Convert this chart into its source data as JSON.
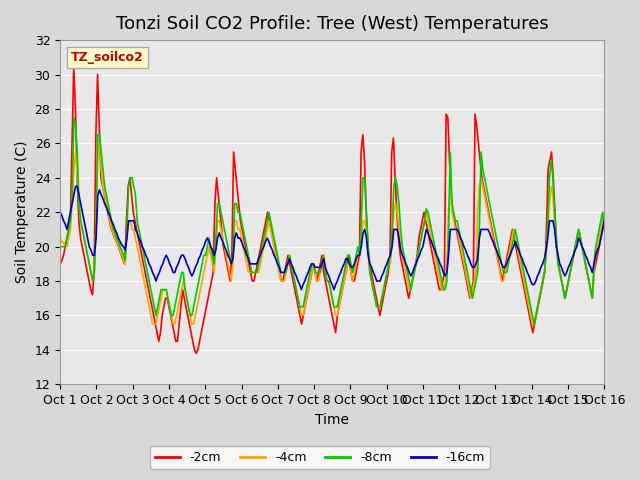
{
  "title": "Tonzi Soil CO2 Profile: Tree (West) Temperatures",
  "xlabel": "Time",
  "ylabel": "Soil Temperature (C)",
  "ylim": [
    12,
    32
  ],
  "yticks": [
    12,
    14,
    16,
    18,
    20,
    22,
    24,
    26,
    28,
    30,
    32
  ],
  "x_labels": [
    "Oct 1",
    "Oct 2",
    "Oct 3",
    "Oct 4",
    "Oct 5",
    "Oct 6",
    "Oct 7",
    "Oct 8",
    "Oct 9",
    "Oct 10",
    "Oct 11",
    "Oct 12",
    "Oct 13",
    "Oct 14",
    "Oct 15",
    "Oct 16"
  ],
  "series": {
    "-2cm": {
      "color": "#FF0000",
      "linewidth": 1.2
    },
    "-4cm": {
      "color": "#FFA500",
      "linewidth": 1.2
    },
    "-8cm": {
      "color": "#00CC00",
      "linewidth": 1.2
    },
    "-16cm": {
      "color": "#0000BB",
      "linewidth": 1.2
    }
  },
  "legend_label": "TZ_soilco2",
  "background_color": "#D8D8D8",
  "plot_bg_color": "#E8E8E8",
  "grid_color": "#FFFFFF",
  "title_fontsize": 13,
  "axis_fontsize": 10,
  "tick_fontsize": 9,
  "data_2cm": [
    19.0,
    19.2,
    19.5,
    20.0,
    20.5,
    21.0,
    21.5,
    26.0,
    30.5,
    28.0,
    24.0,
    21.5,
    20.5,
    20.0,
    19.5,
    19.0,
    18.5,
    18.0,
    17.5,
    17.2,
    18.5,
    26.5,
    30.0,
    27.0,
    24.0,
    23.5,
    23.0,
    22.5,
    22.0,
    21.5,
    21.0,
    20.8,
    20.5,
    20.3,
    20.1,
    19.8,
    19.5,
    19.2,
    19.0,
    21.5,
    23.5,
    24.0,
    23.0,
    22.0,
    21.5,
    21.0,
    20.5,
    20.0,
    19.5,
    19.0,
    18.5,
    18.0,
    17.5,
    17.0,
    16.5,
    16.0,
    15.5,
    15.0,
    14.5,
    15.0,
    16.0,
    16.5,
    17.0,
    17.0,
    16.5,
    16.0,
    15.5,
    15.0,
    14.5,
    14.5,
    15.5,
    16.5,
    17.5,
    17.0,
    16.5,
    16.0,
    15.5,
    15.0,
    14.5,
    14.0,
    13.8,
    14.0,
    14.5,
    15.0,
    15.5,
    16.0,
    16.5,
    17.0,
    17.5,
    18.0,
    18.5,
    22.5,
    24.0,
    23.0,
    22.0,
    21.0,
    20.0,
    19.5,
    19.0,
    18.5,
    18.0,
    19.5,
    25.5,
    24.5,
    23.5,
    22.5,
    21.5,
    21.0,
    20.5,
    20.0,
    19.5,
    19.0,
    18.5,
    18.0,
    18.0,
    18.5,
    19.0,
    19.5,
    20.0,
    20.5,
    21.0,
    21.5,
    22.0,
    21.5,
    21.0,
    20.5,
    20.0,
    19.5,
    19.0,
    18.5,
    18.0,
    18.0,
    18.5,
    19.0,
    19.5,
    19.0,
    18.5,
    18.0,
    17.5,
    17.0,
    16.5,
    16.0,
    15.5,
    16.0,
    16.5,
    17.0,
    17.5,
    18.0,
    18.5,
    19.0,
    18.5,
    18.0,
    18.5,
    19.0,
    19.5,
    18.5,
    18.0,
    17.5,
    17.0,
    16.5,
    16.0,
    15.5,
    15.0,
    16.0,
    16.5,
    17.0,
    17.5,
    18.0,
    18.5,
    19.0,
    19.5,
    18.5,
    18.0,
    18.0,
    18.5,
    19.0,
    19.5,
    25.5,
    26.5,
    25.0,
    22.0,
    20.0,
    19.0,
    18.5,
    18.0,
    17.5,
    17.0,
    16.5,
    16.0,
    16.5,
    17.0,
    17.5,
    18.0,
    18.5,
    19.5,
    25.5,
    26.3,
    24.0,
    22.0,
    20.5,
    19.5,
    19.0,
    18.5,
    18.0,
    17.5,
    17.0,
    17.5,
    18.0,
    18.5,
    19.0,
    19.5,
    20.5,
    21.0,
    21.5,
    22.0,
    21.5,
    21.0,
    20.5,
    20.0,
    19.5,
    19.0,
    18.5,
    18.0,
    17.5,
    17.5,
    18.0,
    18.5,
    27.7,
    27.5,
    25.0,
    23.0,
    22.0,
    21.5,
    21.0,
    20.5,
    20.0,
    19.5,
    19.0,
    18.5,
    18.0,
    17.5,
    17.0,
    17.5,
    18.0,
    27.7,
    27.0,
    26.0,
    25.0,
    24.0,
    23.5,
    23.0,
    22.5,
    22.0,
    21.5,
    21.0,
    20.5,
    20.0,
    19.5,
    19.0,
    18.5,
    18.0,
    18.5,
    19.0,
    19.5,
    20.0,
    20.5,
    21.0,
    20.5,
    20.0,
    19.5,
    19.0,
    18.5,
    18.0,
    17.5,
    17.0,
    16.5,
    16.0,
    15.5,
    15.0,
    15.5,
    16.0,
    16.5,
    17.0,
    17.5,
    18.0,
    18.5,
    21.0,
    24.5,
    25.0,
    25.5,
    24.0,
    22.0,
    20.0,
    19.0,
    18.5,
    18.0,
    17.5,
    17.0,
    17.5,
    18.0,
    18.5,
    19.0,
    19.5,
    20.0,
    20.5,
    21.0,
    20.5,
    20.0,
    19.5,
    19.0,
    18.5,
    18.0,
    17.5,
    17.0,
    18.5,
    19.0,
    19.5,
    20.0,
    20.5,
    21.0,
    21.5
  ],
  "data_4cm": [
    20.5,
    20.3,
    20.2,
    20.1,
    20.0,
    20.5,
    21.0,
    22.5,
    24.5,
    25.5,
    24.0,
    22.5,
    21.5,
    21.0,
    20.5,
    20.0,
    19.5,
    19.0,
    18.5,
    18.0,
    18.5,
    21.5,
    25.5,
    26.0,
    24.5,
    23.5,
    23.0,
    22.5,
    22.0,
    21.5,
    21.0,
    20.8,
    20.5,
    20.3,
    20.1,
    19.8,
    19.5,
    19.2,
    19.0,
    20.5,
    21.5,
    21.5,
    21.0,
    21.0,
    20.5,
    20.0,
    19.5,
    19.0,
    18.5,
    18.0,
    17.5,
    17.0,
    16.5,
    16.0,
    15.5,
    15.5,
    15.5,
    16.0,
    16.5,
    17.0,
    17.5,
    17.5,
    17.5,
    17.0,
    16.5,
    16.0,
    15.5,
    15.5,
    16.0,
    16.5,
    17.0,
    17.5,
    18.0,
    17.5,
    17.0,
    16.5,
    16.0,
    15.5,
    15.5,
    16.0,
    16.5,
    17.0,
    17.5,
    18.0,
    18.5,
    19.0,
    19.5,
    20.0,
    19.5,
    19.0,
    18.5,
    20.0,
    21.5,
    21.5,
    21.0,
    20.5,
    20.0,
    19.5,
    19.0,
    18.5,
    18.0,
    19.0,
    21.5,
    21.5,
    21.0,
    21.0,
    20.5,
    20.0,
    19.5,
    19.0,
    18.5,
    18.5,
    18.5,
    18.5,
    18.5,
    18.5,
    18.5,
    19.0,
    19.5,
    20.0,
    20.5,
    21.0,
    21.5,
    21.0,
    20.5,
    20.0,
    19.5,
    19.0,
    18.5,
    18.0,
    18.0,
    18.0,
    18.5,
    19.0,
    19.5,
    19.0,
    18.5,
    18.0,
    17.5,
    17.0,
    16.5,
    16.0,
    16.0,
    16.5,
    17.0,
    17.5,
    18.0,
    18.5,
    19.0,
    18.5,
    18.0,
    18.0,
    18.5,
    19.0,
    19.5,
    18.5,
    18.0,
    18.0,
    17.5,
    17.0,
    16.5,
    16.0,
    16.0,
    16.5,
    17.0,
    17.5,
    18.0,
    18.5,
    19.0,
    19.0,
    18.5,
    18.0,
    18.5,
    19.0,
    19.5,
    19.5,
    20.5,
    21.5,
    21.5,
    21.0,
    19.5,
    18.5,
    18.0,
    17.5,
    17.0,
    16.5,
    16.5,
    16.5,
    17.0,
    17.5,
    18.0,
    18.5,
    19.0,
    19.0,
    20.5,
    22.0,
    22.5,
    22.0,
    21.0,
    20.0,
    19.5,
    19.0,
    18.5,
    18.0,
    17.5,
    17.5,
    18.0,
    18.5,
    19.0,
    19.5,
    20.0,
    20.5,
    21.0,
    21.5,
    22.0,
    21.5,
    21.0,
    20.5,
    20.0,
    19.5,
    19.0,
    18.5,
    18.0,
    17.5,
    17.5,
    18.0,
    18.5,
    22.0,
    23.5,
    22.0,
    21.5,
    21.0,
    21.0,
    20.5,
    20.0,
    19.5,
    19.0,
    18.5,
    18.0,
    17.5,
    17.0,
    17.5,
    18.0,
    18.5,
    22.0,
    23.5,
    24.0,
    23.5,
    23.0,
    22.5,
    22.0,
    21.5,
    21.0,
    20.5,
    20.0,
    19.5,
    19.0,
    18.5,
    18.0,
    18.0,
    18.5,
    19.0,
    19.5,
    20.0,
    20.5,
    21.0,
    20.5,
    20.0,
    19.5,
    19.0,
    18.5,
    18.0,
    17.5,
    17.0,
    16.5,
    16.0,
    15.5,
    15.5,
    16.0,
    16.5,
    17.0,
    17.5,
    18.0,
    18.5,
    19.5,
    21.0,
    22.5,
    23.5,
    23.0,
    21.5,
    20.0,
    19.0,
    18.5,
    18.0,
    17.5,
    17.0,
    17.5,
    18.0,
    18.5,
    19.0,
    19.5,
    20.0,
    20.5,
    21.0,
    20.5,
    20.0,
    19.5,
    19.0,
    18.5,
    18.0,
    17.5,
    17.0,
    18.5,
    19.5,
    20.0,
    20.5,
    21.0,
    21.5,
    22.0
  ],
  "data_8cm": [
    20.0,
    20.0,
    20.0,
    20.0,
    20.5,
    21.0,
    21.5,
    23.0,
    27.5,
    27.0,
    25.5,
    22.5,
    21.5,
    21.0,
    20.5,
    20.0,
    19.5,
    19.0,
    18.5,
    18.0,
    18.5,
    21.5,
    26.5,
    26.5,
    25.5,
    24.5,
    23.5,
    23.0,
    22.5,
    22.0,
    21.5,
    21.0,
    20.8,
    20.5,
    20.3,
    20.0,
    19.8,
    19.5,
    19.2,
    21.0,
    23.5,
    24.0,
    24.0,
    23.5,
    23.0,
    21.5,
    21.0,
    20.5,
    20.0,
    19.5,
    19.0,
    18.5,
    18.0,
    17.5,
    17.0,
    16.5,
    16.0,
    16.5,
    17.0,
    17.5,
    17.5,
    17.5,
    17.5,
    17.0,
    16.5,
    16.0,
    16.0,
    16.5,
    17.0,
    17.5,
    18.0,
    18.5,
    18.5,
    17.5,
    17.0,
    16.5,
    16.0,
    16.0,
    16.5,
    17.0,
    17.5,
    18.0,
    18.5,
    19.0,
    19.5,
    19.5,
    20.0,
    20.5,
    20.0,
    19.5,
    19.0,
    20.5,
    22.5,
    22.5,
    22.0,
    21.5,
    21.0,
    20.5,
    20.0,
    19.5,
    19.0,
    19.5,
    22.5,
    22.5,
    22.0,
    22.0,
    21.5,
    21.0,
    20.5,
    20.0,
    19.5,
    19.0,
    18.5,
    18.5,
    18.5,
    18.5,
    19.0,
    19.5,
    20.0,
    20.5,
    21.0,
    21.5,
    22.0,
    21.5,
    21.0,
    20.5,
    20.0,
    19.5,
    19.0,
    18.5,
    18.5,
    18.5,
    18.5,
    19.0,
    19.5,
    19.0,
    18.5,
    18.0,
    17.5,
    17.0,
    16.5,
    16.5,
    16.5,
    17.0,
    17.5,
    18.0,
    18.5,
    19.0,
    19.0,
    18.5,
    18.5,
    18.5,
    18.5,
    19.0,
    19.5,
    18.5,
    18.0,
    18.0,
    17.5,
    17.0,
    16.5,
    16.5,
    16.5,
    17.0,
    17.5,
    18.0,
    18.5,
    19.0,
    19.5,
    19.5,
    19.0,
    18.5,
    19.0,
    19.5,
    20.0,
    19.5,
    21.5,
    24.0,
    24.0,
    22.0,
    20.0,
    18.5,
    18.0,
    17.5,
    17.0,
    16.5,
    16.5,
    16.5,
    17.0,
    17.5,
    18.0,
    18.5,
    19.0,
    19.5,
    21.0,
    23.5,
    24.0,
    23.5,
    22.5,
    21.0,
    20.0,
    19.5,
    19.0,
    18.5,
    18.0,
    17.5,
    18.0,
    18.5,
    19.0,
    19.5,
    20.0,
    20.5,
    21.0,
    21.5,
    22.2,
    22.0,
    21.5,
    21.0,
    20.5,
    20.0,
    19.5,
    19.0,
    18.5,
    18.0,
    17.5,
    17.5,
    18.0,
    21.0,
    25.5,
    22.5,
    22.0,
    21.5,
    21.5,
    21.0,
    20.5,
    20.0,
    19.5,
    19.0,
    18.5,
    18.0,
    17.5,
    17.0,
    17.5,
    18.0,
    18.5,
    21.0,
    25.5,
    24.5,
    24.0,
    23.5,
    23.0,
    22.5,
    22.0,
    21.5,
    21.0,
    20.5,
    20.0,
    19.5,
    19.0,
    18.5,
    18.5,
    18.5,
    19.0,
    19.5,
    20.0,
    20.5,
    21.0,
    20.5,
    20.0,
    19.5,
    19.0,
    18.5,
    18.0,
    17.5,
    17.0,
    16.5,
    16.0,
    15.5,
    16.0,
    16.5,
    17.0,
    17.5,
    18.0,
    18.5,
    19.5,
    21.5,
    24.0,
    25.0,
    24.0,
    22.0,
    20.5,
    19.0,
    18.5,
    18.0,
    17.5,
    17.0,
    17.5,
    18.0,
    18.5,
    19.0,
    19.5,
    20.0,
    20.5,
    21.0,
    20.5,
    20.0,
    19.5,
    19.0,
    18.5,
    18.0,
    17.5,
    17.0,
    19.0,
    20.0,
    20.5,
    21.0,
    21.5,
    22.0,
    21.0
  ],
  "data_16cm": [
    22.0,
    21.8,
    21.5,
    21.3,
    21.0,
    21.5,
    22.0,
    22.5,
    23.0,
    23.5,
    23.5,
    23.0,
    22.5,
    22.0,
    21.5,
    21.0,
    20.5,
    20.0,
    19.8,
    19.5,
    19.5,
    20.5,
    23.0,
    23.3,
    23.0,
    22.8,
    22.5,
    22.3,
    22.0,
    21.8,
    21.5,
    21.3,
    21.0,
    20.8,
    20.5,
    20.3,
    20.1,
    20.0,
    19.8,
    20.5,
    21.5,
    21.5,
    21.5,
    21.5,
    21.0,
    20.8,
    20.5,
    20.3,
    20.0,
    19.8,
    19.5,
    19.3,
    19.0,
    18.8,
    18.5,
    18.3,
    18.0,
    18.3,
    18.5,
    18.8,
    19.0,
    19.3,
    19.5,
    19.3,
    19.0,
    18.8,
    18.5,
    18.5,
    18.8,
    19.0,
    19.3,
    19.5,
    19.5,
    19.3,
    19.0,
    18.8,
    18.5,
    18.3,
    18.5,
    18.8,
    19.0,
    19.3,
    19.5,
    19.8,
    20.0,
    20.3,
    20.5,
    20.3,
    20.0,
    19.8,
    19.5,
    19.8,
    20.5,
    20.8,
    20.5,
    20.3,
    20.0,
    19.8,
    19.5,
    19.3,
    19.0,
    19.3,
    20.5,
    20.8,
    20.5,
    20.5,
    20.3,
    20.0,
    19.8,
    19.5,
    19.3,
    19.0,
    19.0,
    19.0,
    19.0,
    19.0,
    19.3,
    19.5,
    19.8,
    20.0,
    20.3,
    20.5,
    20.3,
    20.0,
    19.8,
    19.5,
    19.3,
    19.0,
    18.8,
    18.5,
    18.5,
    18.5,
    18.8,
    19.0,
    19.3,
    19.0,
    18.8,
    18.5,
    18.3,
    18.0,
    17.8,
    17.5,
    17.8,
    18.0,
    18.3,
    18.5,
    18.8,
    19.0,
    19.0,
    18.8,
    18.8,
    18.8,
    18.8,
    19.0,
    19.3,
    18.8,
    18.5,
    18.3,
    18.0,
    17.8,
    17.5,
    17.8,
    18.0,
    18.3,
    18.5,
    18.8,
    19.0,
    19.3,
    19.3,
    19.0,
    18.8,
    18.8,
    19.0,
    19.3,
    19.5,
    19.5,
    20.0,
    20.8,
    21.0,
    20.5,
    19.5,
    19.0,
    18.8,
    18.5,
    18.3,
    18.0,
    18.0,
    18.0,
    18.3,
    18.5,
    18.8,
    19.0,
    19.3,
    19.5,
    20.0,
    21.0,
    21.0,
    21.0,
    20.5,
    19.8,
    19.5,
    19.3,
    19.0,
    18.8,
    18.5,
    18.3,
    18.5,
    18.8,
    19.0,
    19.3,
    19.5,
    19.8,
    20.0,
    20.5,
    21.0,
    20.8,
    20.5,
    20.3,
    20.0,
    19.8,
    19.5,
    19.3,
    19.0,
    18.8,
    18.5,
    18.3,
    18.5,
    19.5,
    21.0,
    21.0,
    21.0,
    21.0,
    21.0,
    20.8,
    20.5,
    20.3,
    20.0,
    19.8,
    19.5,
    19.3,
    19.0,
    18.8,
    18.8,
    19.0,
    19.3,
    20.5,
    21.0,
    21.0,
    21.0,
    21.0,
    21.0,
    20.8,
    20.5,
    20.3,
    20.0,
    19.8,
    19.5,
    19.3,
    19.0,
    18.8,
    18.8,
    19.0,
    19.3,
    19.5,
    19.8,
    20.0,
    20.3,
    20.0,
    19.8,
    19.5,
    19.3,
    19.0,
    18.8,
    18.5,
    18.3,
    18.0,
    17.8,
    17.8,
    18.0,
    18.3,
    18.5,
    18.8,
    19.0,
    19.3,
    19.8,
    20.5,
    21.5,
    21.5,
    21.5,
    21.0,
    20.0,
    19.5,
    19.0,
    18.8,
    18.5,
    18.3,
    18.5,
    18.8,
    19.0,
    19.3,
    19.5,
    19.8,
    20.0,
    20.5,
    20.3,
    20.0,
    19.8,
    19.5,
    19.3,
    19.0,
    18.8,
    18.5,
    19.0,
    19.5,
    19.8,
    20.0,
    20.5,
    21.0,
    21.5
  ]
}
